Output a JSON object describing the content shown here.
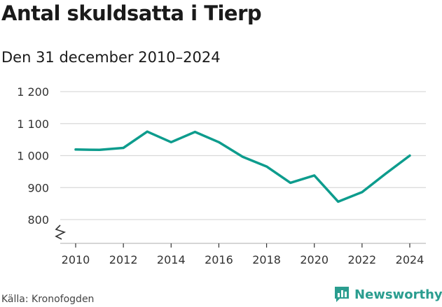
{
  "header": {
    "title": "Antal skuldsatta i Tierp",
    "subtitle": "Den 31 december 2010–2024"
  },
  "footer": {
    "source": "Källa: Kronofogden",
    "brand": "Newsworthy"
  },
  "colors": {
    "line": "#0d9c8d",
    "grid": "#d9d9d9",
    "brand": "#2a9d8f"
  },
  "chart_data": {
    "type": "line",
    "title": "Antal skuldsatta i Tierp",
    "subtitle": "Den 31 december 2010–2024",
    "xlabel": "",
    "ylabel": "",
    "grid": true,
    "axis_break": true,
    "ylim": [
      800,
      1200
    ],
    "xlim": [
      2010,
      2024
    ],
    "y_ticks": [
      {
        "value": 800,
        "label": "800"
      },
      {
        "value": 900,
        "label": "900"
      },
      {
        "value": 1000,
        "label": "1 000"
      },
      {
        "value": 1100,
        "label": "1 100"
      },
      {
        "value": 1200,
        "label": "1 200"
      }
    ],
    "x_ticks": [
      {
        "value": 2010,
        "label": "2010"
      },
      {
        "value": 2012,
        "label": "2012"
      },
      {
        "value": 2014,
        "label": "2014"
      },
      {
        "value": 2016,
        "label": "2016"
      },
      {
        "value": 2018,
        "label": "2018"
      },
      {
        "value": 2020,
        "label": "2020"
      },
      {
        "value": 2022,
        "label": "2022"
      },
      {
        "value": 2024,
        "label": "2024"
      }
    ],
    "series": [
      {
        "name": "Antal skuldsatta",
        "x": [
          2010,
          2011,
          2012,
          2013,
          2014,
          2015,
          2016,
          2017,
          2018,
          2019,
          2020,
          2021,
          2022,
          2023,
          2024
        ],
        "values": [
          1019,
          1018,
          1024,
          1075,
          1042,
          1074,
          1042,
          996,
          966,
          915,
          938,
          856,
          886,
          944,
          1000
        ]
      }
    ]
  }
}
